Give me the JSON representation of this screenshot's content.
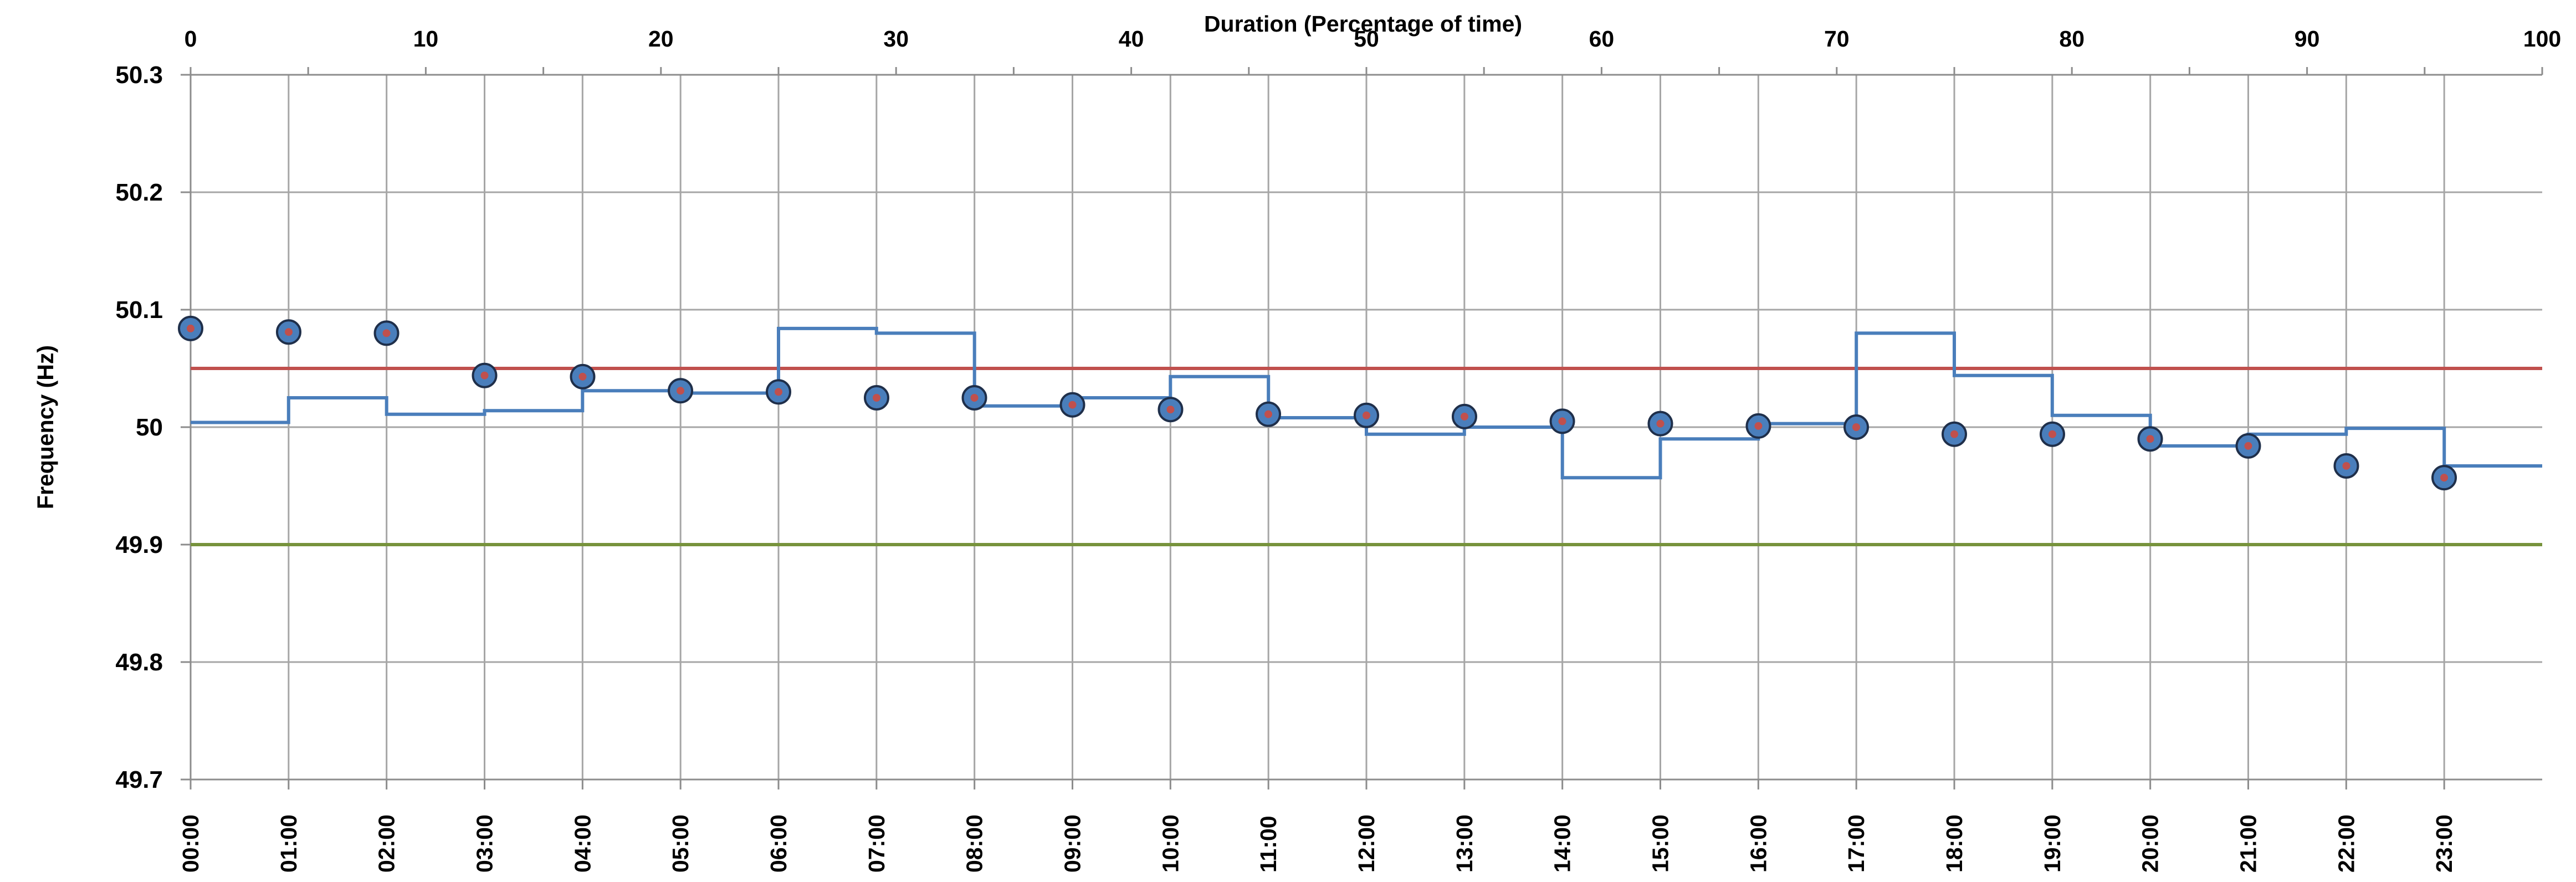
{
  "chart_data": {
    "type": "line",
    "title": "",
    "xlabel": "",
    "x2label": "Duration (Percentage of time)",
    "ylabel": "Frequency (Hz)",
    "ylim": [
      49.7,
      50.3
    ],
    "yticks": [
      "49.7",
      "49.8",
      "49.9",
      "50",
      "50.1",
      "50.2",
      "50.3"
    ],
    "x2lim": [
      0,
      100
    ],
    "x2ticks": [
      "0",
      "10",
      "20",
      "30",
      "40",
      "50",
      "60",
      "70",
      "80",
      "90",
      "100"
    ],
    "grid": true,
    "categories": [
      "00:00",
      "01:00",
      "02:00",
      "03:00",
      "04:00",
      "05:00",
      "06:00",
      "07:00",
      "08:00",
      "09:00",
      "10:00",
      "11:00",
      "12:00",
      "13:00",
      "14:00",
      "15:00",
      "16:00",
      "17:00",
      "18:00",
      "19:00",
      "20:00",
      "21:00",
      "22:00",
      "23:00"
    ],
    "series": [
      {
        "type": "step",
        "color": "#4a7ebb",
        "values": [
          50.004,
          50.025,
          50.011,
          50.014,
          50.031,
          50.029,
          50.084,
          50.08,
          50.018,
          50.025,
          50.043,
          50.008,
          49.994,
          50.0,
          49.957,
          49.99,
          50.003,
          50.08,
          50.044,
          50.01,
          49.984,
          49.994,
          49.999,
          49.967
        ]
      },
      {
        "type": "scatter",
        "color": "#4a7ebb",
        "x2": [
          0,
          4.17,
          8.33,
          12.5,
          16.67,
          20.83,
          25,
          29.17,
          33.33,
          37.5,
          41.67,
          45.83,
          50,
          54.17,
          58.33,
          62.5,
          66.67,
          70.83,
          75,
          79.17,
          83.33,
          87.5,
          91.67,
          95.83
        ],
        "values": [
          50.084,
          50.081,
          50.08,
          50.044,
          50.043,
          50.031,
          50.03,
          50.025,
          50.025,
          50.019,
          50.015,
          50.011,
          50.01,
          50.009,
          50.005,
          50.003,
          50.001,
          50.0,
          49.994,
          49.994,
          49.99,
          49.984,
          49.967,
          49.957
        ]
      }
    ],
    "reference_lines": [
      {
        "value": 50.05,
        "color": "#c0504d"
      },
      {
        "value": 49.9,
        "color": "#77933c"
      }
    ]
  }
}
